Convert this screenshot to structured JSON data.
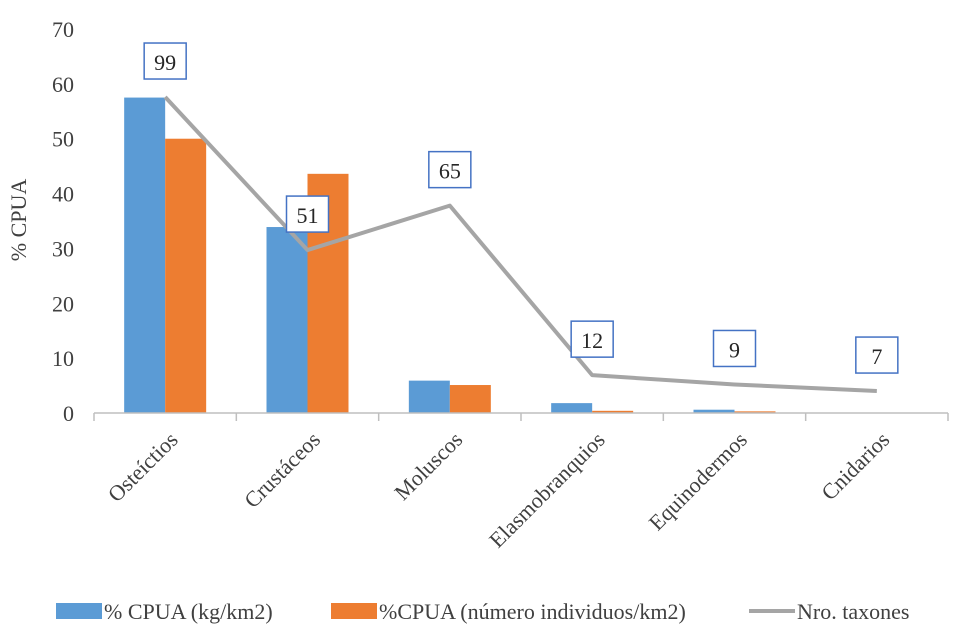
{
  "chart_data": {
    "type": "bar",
    "title": "",
    "xlabel": "",
    "ylabel": "% CPUA",
    "ylim": [
      0,
      70
    ],
    "yticks": [
      0,
      10,
      20,
      30,
      40,
      50,
      60,
      70
    ],
    "grid": false,
    "legend_position": "bottom",
    "categories": [
      "Osteíctios",
      "Crustáceos",
      "Moluscos",
      "Elasmobranquios",
      "Equinodermos",
      "Cnidarios"
    ],
    "series": [
      {
        "name": "% CPUA (kg/km2)",
        "kind": "bar",
        "color": "#5b9bd5",
        "values": [
          57.5,
          33.9,
          5.9,
          1.8,
          0.6,
          0.0
        ]
      },
      {
        "name": "%CPUA (número individuos/km2)",
        "kind": "bar",
        "color": "#ed7d31",
        "values": [
          50.0,
          43.6,
          5.1,
          0.4,
          0.3,
          0.0
        ]
      },
      {
        "name": "Nro. taxones",
        "kind": "line",
        "color": "#a5a5a5",
        "values": [
          57.6,
          29.7,
          37.8,
          6.9,
          5.2,
          4.0
        ],
        "data_labels": [
          "99",
          "51",
          "65",
          "12",
          "9",
          "7"
        ]
      }
    ]
  }
}
